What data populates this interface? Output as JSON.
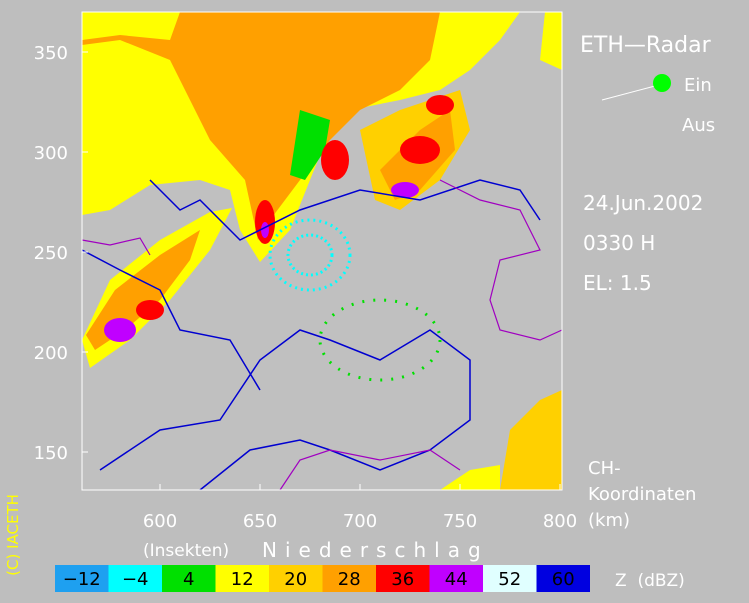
{
  "title": "ETH—Radar",
  "status": {
    "on": "Ein",
    "off": "Aus"
  },
  "date": "24.Jun.2002",
  "time": "0330 H",
  "elevation": "EL: 1.5",
  "coord_label": [
    "CH-",
    "Koordinaten",
    "(km)"
  ],
  "copyright": "(C) IACETH",
  "x_axis": {
    "ticks": [
      "600",
      "650",
      "700",
      "750",
      "800"
    ]
  },
  "y_axis": {
    "ticks": [
      "350",
      "300",
      "250",
      "200",
      "150"
    ]
  },
  "legend": {
    "caption_left": "(Insekten)",
    "caption_right": "Niederschlag",
    "unit": "Z  (dBZ)",
    "levels": [
      {
        "label": "−12",
        "color": "#1ea0f0"
      },
      {
        "label": "−4",
        "color": "#00ffff"
      },
      {
        "label": "4",
        "color": "#00e000"
      },
      {
        "label": "12",
        "color": "#ffff00"
      },
      {
        "label": "20",
        "color": "#ffd000"
      },
      {
        "label": "28",
        "color": "#ffa000"
      },
      {
        "label": "36",
        "color": "#ff0000"
      },
      {
        "label": "44",
        "color": "#c000ff"
      },
      {
        "label": "52",
        "color": "#e0ffff"
      },
      {
        "label": "60",
        "color": "#0000e0"
      }
    ]
  }
}
